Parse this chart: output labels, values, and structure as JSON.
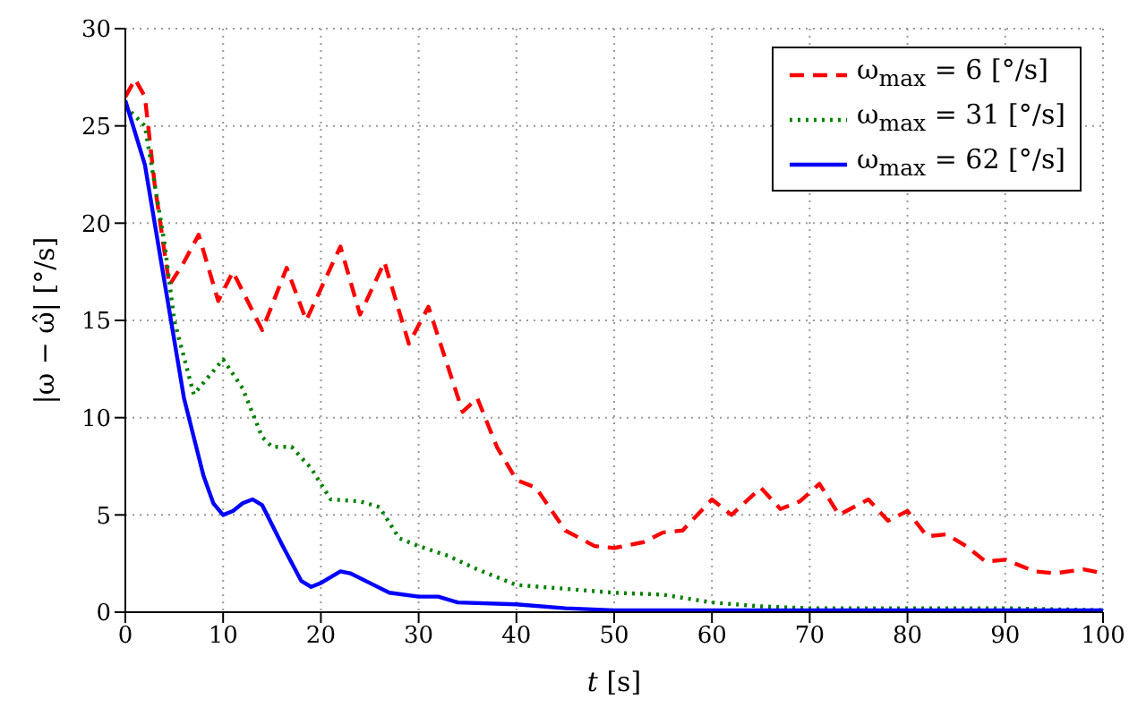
{
  "chart_data": {
    "type": "line",
    "xlabel": "t [s]",
    "ylabel": "|ω − ω̂| [°/s]",
    "xlim": [
      0,
      100
    ],
    "ylim": [
      0,
      30
    ],
    "xticks": [
      0,
      10,
      20,
      30,
      40,
      50,
      60,
      70,
      80,
      90,
      100
    ],
    "yticks": [
      0,
      5,
      10,
      15,
      20,
      25,
      30
    ],
    "grid": true,
    "legend": "top right",
    "series": [
      {
        "name": "ω$_{max}$ = 6 [°/s]",
        "color": "#ff0000",
        "line_style": "dashed",
        "x": [
          0,
          1,
          2,
          3,
          4.5,
          6,
          7.5,
          9.5,
          11,
          14,
          16.5,
          18.5,
          22,
          24,
          26.5,
          29,
          31,
          34.5,
          36,
          38,
          40,
          42,
          45,
          48,
          50,
          53,
          55,
          57,
          60,
          62,
          65,
          67,
          69,
          71,
          73,
          76,
          78,
          80,
          82,
          84,
          86,
          88,
          90,
          93,
          95,
          98,
          100
        ],
        "values": [
          26.5,
          27.4,
          26.5,
          22,
          16.8,
          18,
          19.4,
          16,
          17.5,
          14.5,
          17.7,
          15,
          18.8,
          15.3,
          18,
          13.8,
          15.7,
          10.3,
          11,
          8.5,
          6.8,
          6.4,
          4.2,
          3.4,
          3.3,
          3.6,
          4.1,
          4.2,
          5.8,
          5,
          6.4,
          5.3,
          5.7,
          6.6,
          5,
          5.8,
          4.7,
          5.2,
          3.9,
          4,
          3.4,
          2.6,
          2.7,
          2.1,
          2,
          2.2,
          2
        ]
      },
      {
        "name": "ω$_{max}$ = 31 [°/s]",
        "color": "#008000",
        "line_style": "dotted",
        "x": [
          0,
          2,
          4,
          5,
          7,
          8,
          10,
          12,
          14,
          15,
          17,
          19,
          21,
          24,
          26,
          28,
          30,
          33,
          36,
          40,
          45,
          50,
          55,
          60,
          65,
          70,
          80,
          90,
          100
        ],
        "values": [
          26,
          25,
          19,
          15,
          11.2,
          11.8,
          13,
          11.5,
          9,
          8.5,
          8.5,
          7.4,
          5.8,
          5.7,
          5.4,
          3.8,
          3.4,
          2.9,
          2.2,
          1.4,
          1.2,
          1,
          0.9,
          0.5,
          0.3,
          0.2,
          0.2,
          0.2,
          0.1
        ]
      },
      {
        "name": "ω$_{max}$ = 62 [°/s]",
        "color": "#0000ff",
        "line_style": "solid",
        "x": [
          0,
          2,
          4,
          6,
          8,
          9,
          10,
          11,
          12,
          13,
          14,
          16,
          18,
          19,
          20,
          22,
          23,
          25,
          27,
          30,
          32,
          34,
          40,
          45,
          50,
          60,
          70,
          80,
          90,
          100
        ],
        "values": [
          26.3,
          23,
          17,
          11,
          7,
          5.6,
          5,
          5.2,
          5.6,
          5.8,
          5.5,
          3.5,
          1.6,
          1.3,
          1.5,
          2.1,
          2,
          1.5,
          1,
          0.8,
          0.8,
          0.5,
          0.4,
          0.2,
          0.1,
          0.1,
          0.1,
          0.1,
          0.1,
          0.1
        ]
      }
    ]
  }
}
